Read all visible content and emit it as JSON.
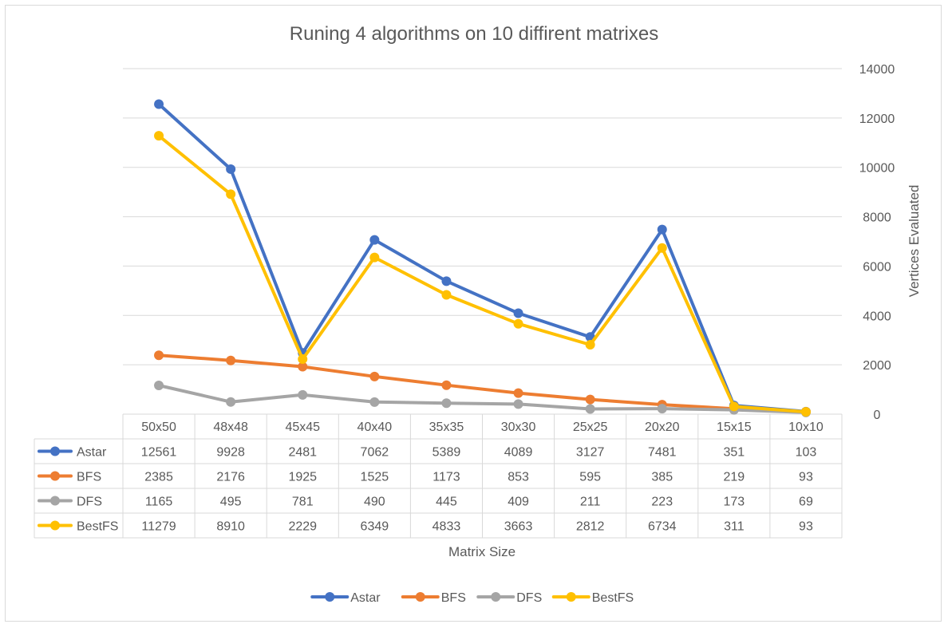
{
  "chart_data": {
    "type": "line",
    "title": "Runing 4 algorithms on 10 diffirent matrixes",
    "xlabel": "Matrix Size",
    "ylabel": "Vertices  Evaluated",
    "ylim": [
      0,
      14000
    ],
    "yticks": [
      0,
      2000,
      4000,
      6000,
      8000,
      10000,
      12000,
      14000
    ],
    "y_axis_side": "right",
    "grid": true,
    "legend_position": "bottom",
    "data_table": true,
    "categories": [
      "50x50",
      "48x48",
      "45x45",
      "40x40",
      "35x35",
      "30x30",
      "25x25",
      "20x20",
      "15x15",
      "10x10"
    ],
    "series": [
      {
        "name": "Astar",
        "color": "#4472c4",
        "values": [
          12561,
          9928,
          2481,
          7062,
          5389,
          4089,
          3127,
          7481,
          351,
          103
        ]
      },
      {
        "name": "BFS",
        "color": "#ed7d31",
        "values": [
          2385,
          2176,
          1925,
          1525,
          1173,
          853,
          595,
          385,
          219,
          93
        ]
      },
      {
        "name": "DFS",
        "color": "#a5a5a5",
        "values": [
          1165,
          495,
          781,
          490,
          445,
          409,
          211,
          223,
          173,
          69
        ]
      },
      {
        "name": "BestFS",
        "color": "#ffc000",
        "values": [
          11279,
          8910,
          2229,
          6349,
          4833,
          3663,
          2812,
          6734,
          311,
          93
        ]
      }
    ]
  }
}
